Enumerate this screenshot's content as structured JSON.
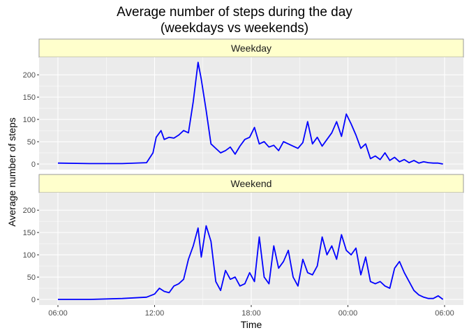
{
  "chart_data": {
    "type": "line",
    "title": "Average number of steps during the day",
    "subtitle": "(weekdays vs weekends)",
    "xlabel": "Time",
    "ylabel": "Average number of steps",
    "x_ticks": [
      "06:00",
      "12:00",
      "18:00",
      "00:00",
      "06:00"
    ],
    "x_tick_hours": [
      6,
      12,
      18,
      24,
      30
    ],
    "xlim_hours": [
      6,
      30
    ],
    "y_ticks": [
      0,
      50,
      100,
      150,
      200
    ],
    "ylim": [
      0,
      230
    ],
    "grid": true,
    "line_color": "#0000ff",
    "panel_bg": "#ebebeb",
    "strip_bg": "#ffffcc",
    "panels": [
      {
        "label": "Weekday",
        "x": [
          6,
          8,
          10,
          11.5,
          11.9,
          12.1,
          12.4,
          12.6,
          12.9,
          13.2,
          13.5,
          13.8,
          14.1,
          14.4,
          14.7,
          14.9,
          15.2,
          15.5,
          15.8,
          16.1,
          16.4,
          16.7,
          17,
          17.3,
          17.6,
          17.9,
          18.2,
          18.5,
          18.8,
          19.1,
          19.4,
          19.7,
          20,
          20.3,
          20.6,
          20.9,
          21.2,
          21.5,
          21.8,
          22.1,
          22.4,
          22.7,
          23,
          23.3,
          23.6,
          23.9,
          24.2,
          24.5,
          24.8,
          25.1,
          25.4,
          25.7,
          26,
          26.3,
          26.6,
          26.9,
          27.2,
          27.5,
          27.8,
          28.1,
          28.4,
          28.7,
          29,
          29.3,
          29.6,
          29.9
        ],
        "y": [
          2,
          1,
          1,
          3,
          25,
          60,
          75,
          55,
          60,
          58,
          65,
          75,
          70,
          140,
          228,
          190,
          120,
          45,
          35,
          25,
          30,
          38,
          22,
          40,
          55,
          60,
          82,
          45,
          50,
          38,
          42,
          30,
          50,
          45,
          40,
          35,
          48,
          95,
          45,
          60,
          40,
          55,
          70,
          95,
          62,
          112,
          90,
          65,
          35,
          45,
          12,
          18,
          10,
          25,
          8,
          15,
          5,
          10,
          3,
          8,
          2,
          5,
          3,
          2,
          2,
          0
        ]
      },
      {
        "label": "Weekend",
        "x": [
          6,
          8,
          10,
          11.5,
          12,
          12.3,
          12.6,
          12.9,
          13.2,
          13.5,
          13.8,
          14.1,
          14.4,
          14.7,
          14.9,
          15.2,
          15.5,
          15.8,
          16.1,
          16.4,
          16.7,
          17,
          17.3,
          17.6,
          17.9,
          18.2,
          18.5,
          18.8,
          19.1,
          19.4,
          19.7,
          20,
          20.3,
          20.6,
          20.9,
          21.2,
          21.5,
          21.8,
          22.1,
          22.4,
          22.7,
          23,
          23.3,
          23.6,
          23.9,
          24.2,
          24.5,
          24.8,
          25.1,
          25.4,
          25.7,
          26,
          26.3,
          26.6,
          26.9,
          27.2,
          27.5,
          27.8,
          28.1,
          28.4,
          28.7,
          29,
          29.3,
          29.6,
          29.9
        ],
        "y": [
          0,
          0,
          2,
          5,
          12,
          25,
          18,
          15,
          30,
          35,
          45,
          90,
          120,
          160,
          95,
          165,
          130,
          40,
          20,
          65,
          45,
          50,
          30,
          35,
          60,
          40,
          140,
          50,
          35,
          120,
          70,
          85,
          110,
          50,
          30,
          90,
          60,
          55,
          75,
          140,
          100,
          120,
          90,
          145,
          110,
          100,
          115,
          55,
          95,
          40,
          35,
          40,
          30,
          25,
          70,
          85,
          60,
          40,
          20,
          10,
          5,
          2,
          2,
          8,
          0
        ]
      }
    ]
  }
}
